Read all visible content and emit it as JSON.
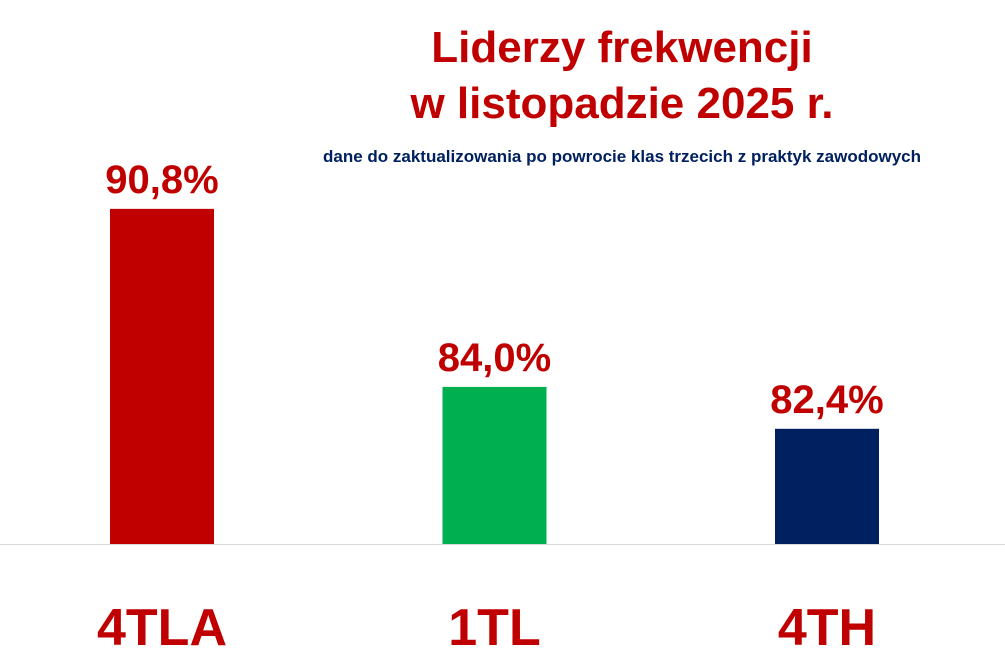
{
  "chart_data": {
    "type": "bar",
    "title_lines": [
      "Liderzy frekwencji",
      "w listopadzie 2025 r."
    ],
    "subtitle": "dane do zaktualizowania po powrocie klas trzecich z praktyk zawodowych",
    "categories": [
      "4TLA",
      "1TL",
      "4TH"
    ],
    "values": [
      90.8,
      84.0,
      82.4
    ],
    "data_labels": [
      "90,8%",
      "84,0%",
      "82,4%"
    ],
    "colors": [
      "#C00000",
      "#00B050",
      "#002060"
    ],
    "label_color": "#C00000",
    "ylim": [
      78,
      100
    ],
    "grid": false,
    "legend": "none"
  }
}
